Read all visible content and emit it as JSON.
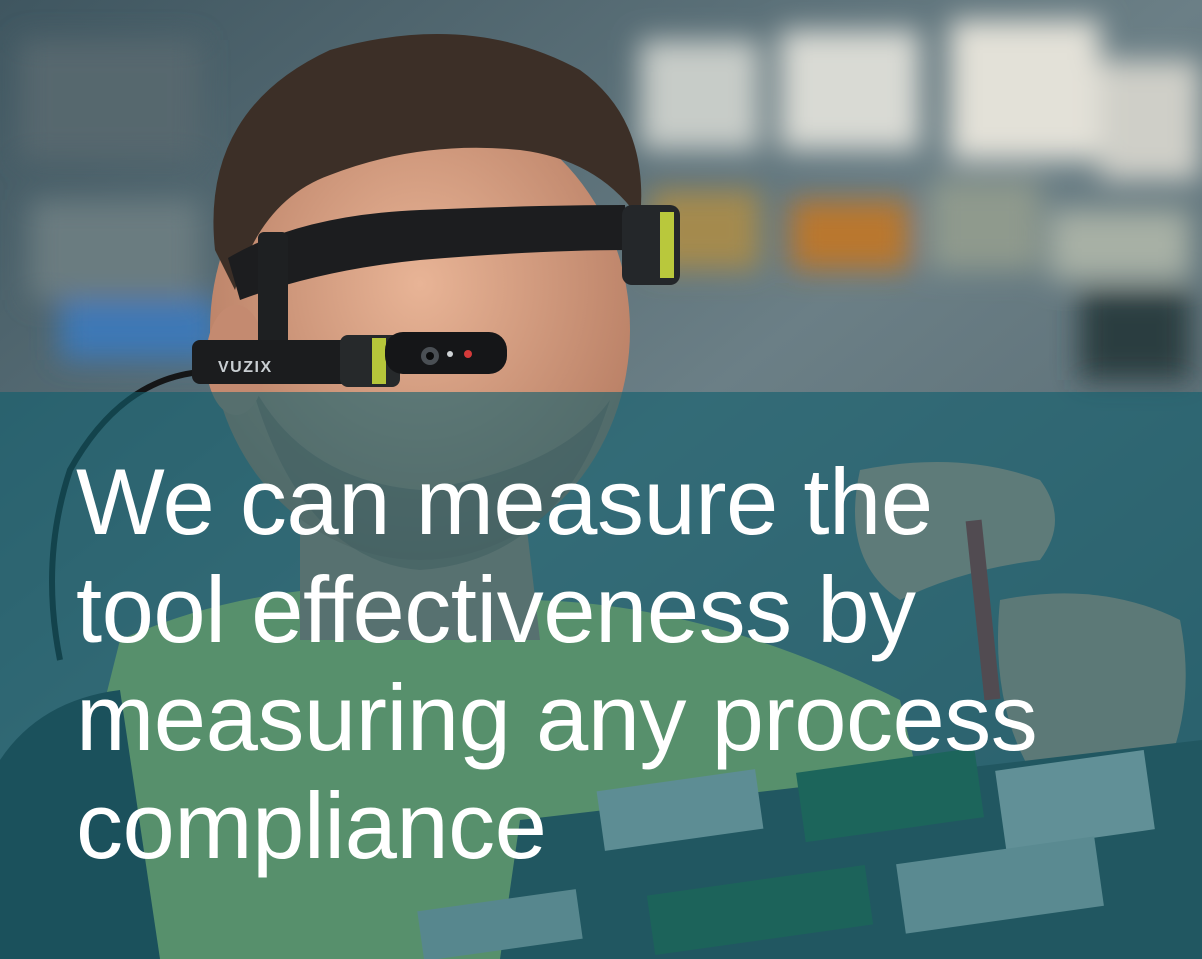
{
  "image": {
    "description_icon": "man-wearing-smart-glasses-photo",
    "device_brand": "VUZIX"
  },
  "headline": {
    "lines": [
      "We can measure the",
      "tool effectiveness by",
      "measuring any process",
      "compliance"
    ]
  },
  "colors": {
    "overlay": "#12606e",
    "text": "#ffffff",
    "vest": "#c9e36a",
    "background": "#3b5a63"
  }
}
